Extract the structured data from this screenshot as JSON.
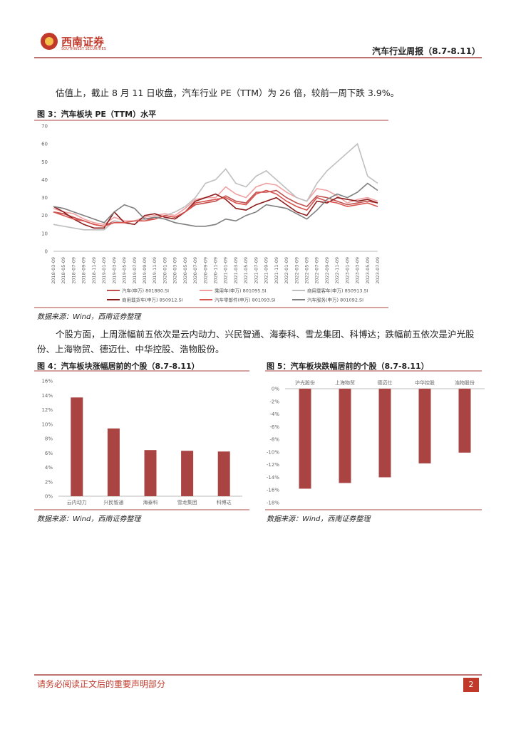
{
  "header": {
    "logo_cn": "西南证券",
    "logo_en": "SOUTHWEST SECURITIES",
    "report": "汽车行业周报（8.7-8.11）"
  },
  "paragraphs": [
    "估值上，截止 8 月 11 日收盘，汽车行业 PE（TTM）为 26 倍，较前一周下跌 3.9%。",
    "个股方面，上周涨幅前五依次是云内动力、兴民智通、海泰科、雪龙集团、科博达；跌幅前五依次是沪光股份、上海物贸、德迈仕、中华控股、浩物股份。"
  ],
  "chart_data": [
    {
      "type": "line",
      "title": "图 3：汽车板块 PE（TTM）水平",
      "source": "数据来源：Wind，西南证券整理",
      "categories": [
        "2018-03-09",
        "2018-05-09",
        "2018-07-09",
        "2018-09-09",
        "2018-11-09",
        "2019-01-09",
        "2019-03-09",
        "2019-05-09",
        "2019-07-09",
        "2019-09-09",
        "2019-11-09",
        "2020-01-09",
        "2020-03-09",
        "2020-05-09",
        "2020-07-09",
        "2020-09-09",
        "2020-11-09",
        "2021-01-09",
        "2021-03-09",
        "2021-05-09",
        "2021-07-09",
        "2021-09-09",
        "2021-11-09",
        "2022-01-09",
        "2022-03-09",
        "2022-05-09",
        "2022-07-09",
        "2022-09-09",
        "2022-11-09",
        "2023-01-09",
        "2023-03-09",
        "2023-05-09",
        "2023-07-09"
      ],
      "ylim": [
        0,
        70
      ],
      "yticks": [
        0,
        10,
        20,
        30,
        40,
        50,
        60,
        70
      ],
      "series": [
        {
          "name": "汽车(申万) 801880.SI",
          "color": "#c0504d",
          "values": [
            22,
            21,
            19,
            17,
            15,
            14,
            17,
            16,
            17,
            18,
            18,
            20,
            19,
            22,
            26,
            27,
            28,
            31,
            28,
            27,
            33,
            33,
            34,
            30,
            27,
            25,
            31,
            30,
            28,
            26,
            27,
            28,
            27
          ]
        },
        {
          "name": "乘用车(申万) 801095.SI",
          "color": "#f0a0a0",
          "values": [
            24,
            22,
            21,
            18,
            16,
            15,
            19,
            17,
            17,
            19,
            20,
            21,
            20,
            24,
            29,
            30,
            30,
            36,
            32,
            30,
            36,
            38,
            37,
            33,
            30,
            28,
            35,
            34,
            31,
            27,
            29,
            30,
            28
          ]
        },
        {
          "name": "商用载客车(申万) 850913.SI",
          "color": "#bfbfbf",
          "values": [
            15,
            14,
            13,
            12,
            12,
            12,
            17,
            16,
            17,
            18,
            19,
            20,
            22,
            25,
            30,
            38,
            40,
            46,
            38,
            36,
            42,
            45,
            40,
            35,
            30,
            28,
            38,
            45,
            50,
            55,
            60,
            42,
            38
          ]
        },
        {
          "name": "商用载货车(申万) 850912.SI",
          "color": "#8b1a1a",
          "values": [
            25,
            22,
            18,
            15,
            13,
            13,
            22,
            16,
            15,
            20,
            21,
            19,
            18,
            22,
            28,
            30,
            32,
            29,
            24,
            23,
            26,
            28,
            30,
            26,
            22,
            20,
            28,
            27,
            30,
            29,
            28,
            29,
            27
          ]
        },
        {
          "name": "汽车零部件(申万) 801093.SI",
          "color": "#d9534f",
          "values": [
            22,
            20,
            18,
            17,
            15,
            14,
            16,
            16,
            17,
            17,
            18,
            20,
            19,
            22,
            27,
            28,
            29,
            30,
            27,
            26,
            32,
            34,
            32,
            28,
            25,
            23,
            30,
            28,
            27,
            25,
            26,
            27,
            25
          ]
        },
        {
          "name": "汽车服务(申万) 801092.SI",
          "color": "#7f7f7f",
          "values": [
            25,
            24,
            22,
            20,
            18,
            16,
            22,
            26,
            24,
            18,
            19,
            18,
            16,
            15,
            14,
            14,
            15,
            18,
            17,
            20,
            22,
            26,
            25,
            24,
            21,
            18,
            23,
            29,
            32,
            30,
            33,
            38,
            34
          ]
        }
      ]
    },
    {
      "type": "bar",
      "title": "图 4：汽车板块涨幅居前的个股（8.7-8.11）",
      "source": "数据来源：Wind，西南证券整理",
      "categories": [
        "云内动力",
        "兴民智通",
        "海泰科",
        "雪龙集团",
        "科博达"
      ],
      "values": [
        13.7,
        9.4,
        6.4,
        6.3,
        6.2
      ],
      "color": "#a94442",
      "ylim": [
        0,
        16
      ],
      "yticks": [
        {
          "value": 0,
          "label": "0%"
        },
        {
          "value": 2,
          "label": "2%"
        },
        {
          "value": 4,
          "label": "4%"
        },
        {
          "value": 6,
          "label": "6%"
        },
        {
          "value": 8,
          "label": "8%"
        },
        {
          "value": 10,
          "label": "10%"
        },
        {
          "value": 12,
          "label": "12%"
        },
        {
          "value": 14,
          "label": "14%"
        },
        {
          "value": 16,
          "label": "16%"
        }
      ]
    },
    {
      "type": "bar",
      "title": "图 5：汽车板块跌幅居前的个股（8.7-8.11）",
      "source": "数据来源：Wind，西南证券整理",
      "categories": [
        "沪光股份",
        "上海物贸",
        "德迈仕",
        "中华控股",
        "浩物股份"
      ],
      "values": [
        -15.8,
        -14.9,
        -14.0,
        -11.8,
        -10.1
      ],
      "color": "#a94442",
      "ylim": [
        -18,
        0
      ],
      "yticks": [
        {
          "value": 0,
          "label": "0%"
        },
        {
          "value": -2,
          "label": "-2%"
        },
        {
          "value": -4,
          "label": "-4%"
        },
        {
          "value": -6,
          "label": "-6%"
        },
        {
          "value": -8,
          "label": "-8%"
        },
        {
          "value": -10,
          "label": "-10%"
        },
        {
          "value": -12,
          "label": "-12%"
        },
        {
          "value": -14,
          "label": "-14%"
        },
        {
          "value": -16,
          "label": "-16%"
        },
        {
          "value": -18,
          "label": "-18%"
        }
      ]
    }
  ],
  "footer": {
    "notice": "请务必阅读正文后的重要声明部分",
    "page": "2"
  }
}
